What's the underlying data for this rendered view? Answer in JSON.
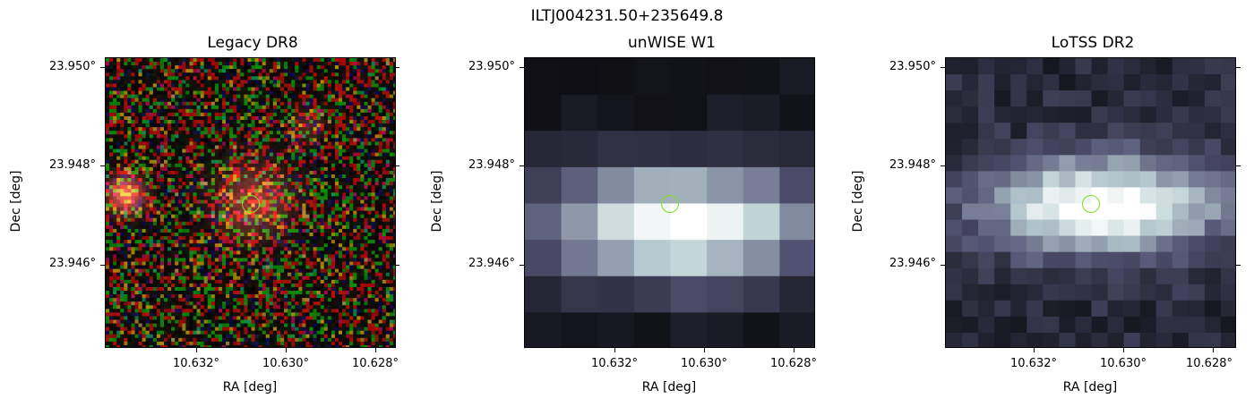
{
  "figure": {
    "suptitle": "ILTJ004231.50+235649.8",
    "panels": [
      {
        "title": "Legacy DR8",
        "xlabel": "RA [deg]",
        "ylabel": "Dec [deg]",
        "yticks": [
          "23.950°",
          "23.948°",
          "23.946°"
        ],
        "xticks": [
          "10.632°",
          "10.630°",
          "10.628°"
        ],
        "colormap": "rgb",
        "marker_color": "#7fe01f"
      },
      {
        "title": "unWISE W1",
        "xlabel": "RA [deg]",
        "ylabel": "Dec [deg]",
        "yticks": [
          "23.950°",
          "23.948°",
          "23.946°"
        ],
        "xticks": [
          "10.632°",
          "10.630°",
          "10.628°"
        ],
        "colormap": "bone",
        "marker_color": "#7fe01f"
      },
      {
        "title": "LoTSS DR2",
        "xlabel": "RA [deg]",
        "ylabel": "Dec [deg]",
        "yticks": [
          "23.950°",
          "23.948°",
          "23.946°"
        ],
        "xticks": [
          "10.632°",
          "10.630°",
          "10.628°"
        ],
        "colormap": "bone",
        "marker_color": "#7fe01f"
      }
    ]
  }
}
